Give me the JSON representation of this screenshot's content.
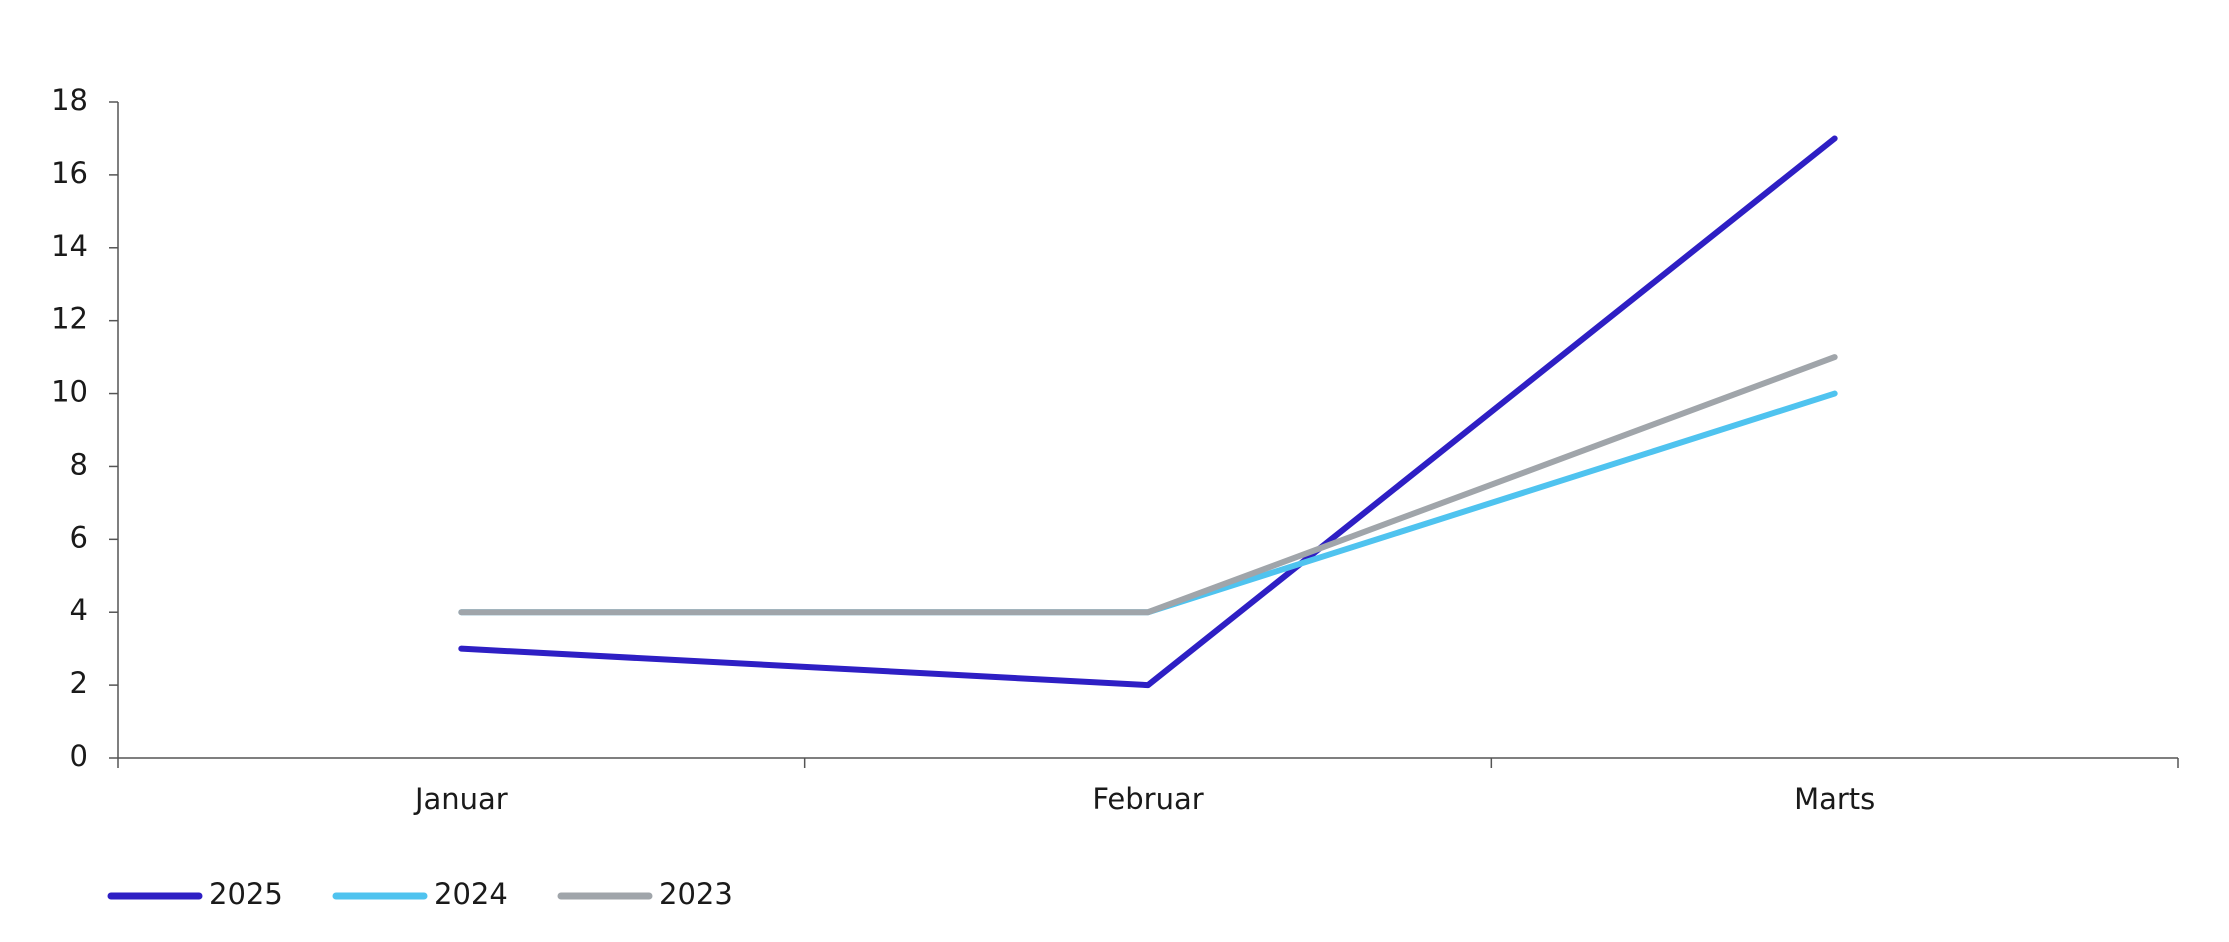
{
  "chart_data": {
    "type": "line",
    "categories": [
      "Januar",
      "Februar",
      "Marts"
    ],
    "series": [
      {
        "name": "2025",
        "color": "#2e1fc4",
        "values": [
          3,
          2,
          17
        ]
      },
      {
        "name": "2024",
        "color": "#4fc3ef",
        "values": [
          4,
          4,
          10
        ]
      },
      {
        "name": "2023",
        "color": "#a0a5aa",
        "values": [
          4,
          4,
          11
        ]
      }
    ],
    "ylim": [
      0,
      18
    ],
    "yticks": [
      0,
      2,
      4,
      6,
      8,
      10,
      12,
      14,
      16,
      18
    ],
    "grid": false,
    "legend": "bottom-left"
  }
}
